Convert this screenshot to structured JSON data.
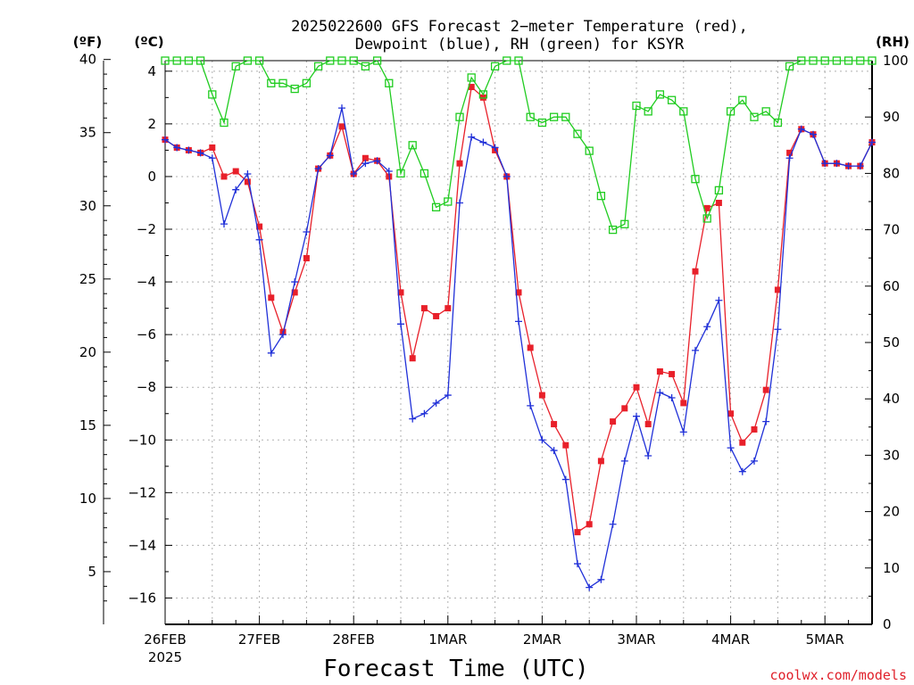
{
  "title_line1": "2025022600 GFS Forecast 2−meter Temperature (red),",
  "title_line2": "Dewpoint (blue), RH (green) for KSYR",
  "x_axis_title": "Forecast Time (UTC)",
  "credit": "coolwx.com/models",
  "unit_f": "(ºF)",
  "unit_c": "(ºC)",
  "unit_rh": "(RH)",
  "x_year": "2025",
  "chart_data": {
    "type": "line",
    "title": "2025022600 GFS Forecast 2-meter Temperature (red), Dewpoint (blue), RH (green) for KSYR",
    "xlabel": "Forecast Time (UTC)",
    "x_unit": "days since 2025-02-26 00 UTC",
    "x_range": [
      0,
      7.5
    ],
    "x_ticks": [
      0,
      1,
      2,
      3,
      4,
      5,
      6,
      7
    ],
    "x_tick_labels": [
      "26FEB",
      "27FEB",
      "28FEB",
      "1MAR",
      "2MAR",
      "3MAR",
      "4MAR",
      "5MAR"
    ],
    "y_celsius": {
      "range": [
        -17,
        4.4
      ],
      "ticks": [
        -16,
        -14,
        -12,
        -10,
        -8,
        -6,
        -4,
        -2,
        0,
        2,
        4
      ],
      "tick_labels": [
        "−16",
        "−14",
        "−12",
        "−10",
        "−8",
        "−6",
        "−4",
        "−2",
        "0",
        "2",
        "4"
      ]
    },
    "y_fahrenheit": {
      "ticks": [
        5,
        10,
        15,
        20,
        25,
        30,
        35,
        40
      ],
      "tick_labels": [
        "5",
        "10",
        "15",
        "20",
        "25",
        "30",
        "35",
        "40"
      ]
    },
    "y_rh": {
      "range": [
        0,
        100
      ],
      "ticks": [
        0,
        10,
        20,
        30,
        40,
        50,
        60,
        70,
        80,
        90,
        100
      ],
      "tick_labels": [
        "0",
        "10",
        "20",
        "30",
        "40",
        "50",
        "60",
        "70",
        "80",
        "90",
        "100"
      ]
    },
    "grid": true,
    "series": [
      {
        "name": "Temperature",
        "axis": "celsius",
        "color": "#e8202a",
        "marker": "filled-square",
        "points": [
          [
            0,
            1.4
          ],
          [
            0.125,
            1.1
          ],
          [
            0.25,
            1.0
          ],
          [
            0.375,
            0.9
          ],
          [
            0.5,
            1.1
          ],
          [
            0.625,
            0.0
          ],
          [
            0.75,
            0.2
          ],
          [
            0.875,
            -0.2
          ],
          [
            1.0,
            -1.9
          ],
          [
            1.125,
            -4.6
          ],
          [
            1.25,
            -5.9
          ],
          [
            1.375,
            -4.4
          ],
          [
            1.5,
            -3.1
          ],
          [
            1.625,
            0.3
          ],
          [
            1.75,
            0.8
          ],
          [
            1.875,
            1.9
          ],
          [
            2.0,
            0.1
          ],
          [
            2.125,
            0.7
          ],
          [
            2.25,
            0.6
          ],
          [
            2.375,
            0.0
          ],
          [
            2.5,
            -4.4
          ],
          [
            2.625,
            -6.9
          ],
          [
            2.75,
            -5.0
          ],
          [
            2.875,
            -5.3
          ],
          [
            3.0,
            -5.0
          ],
          [
            3.125,
            0.5
          ],
          [
            3.25,
            3.4
          ],
          [
            3.375,
            3.0
          ],
          [
            3.5,
            1.0
          ],
          [
            3.625,
            0.0
          ],
          [
            3.75,
            -4.4
          ],
          [
            3.875,
            -6.5
          ],
          [
            4.0,
            -8.3
          ],
          [
            4.125,
            -9.4
          ],
          [
            4.25,
            -10.2
          ],
          [
            4.375,
            -13.5
          ],
          [
            4.5,
            -13.2
          ],
          [
            4.625,
            -10.8
          ],
          [
            4.75,
            -9.3
          ],
          [
            4.875,
            -8.8
          ],
          [
            5.0,
            -8.0
          ],
          [
            5.125,
            -9.4
          ],
          [
            5.25,
            -7.4
          ],
          [
            5.375,
            -7.5
          ],
          [
            5.5,
            -8.6
          ],
          [
            5.625,
            -3.6
          ],
          [
            5.75,
            -1.2
          ],
          [
            5.875,
            -1.0
          ],
          [
            6.0,
            -9.0
          ],
          [
            6.125,
            -10.1
          ],
          [
            6.25,
            -9.6
          ],
          [
            6.375,
            -8.1
          ],
          [
            6.5,
            -4.3
          ],
          [
            6.625,
            0.9
          ],
          [
            6.75,
            1.8
          ],
          [
            6.875,
            1.6
          ],
          [
            7.0,
            0.5
          ],
          [
            7.125,
            0.5
          ],
          [
            7.25,
            0.4
          ],
          [
            7.375,
            0.4
          ],
          [
            7.5,
            1.3
          ]
        ]
      },
      {
        "name": "Dewpoint",
        "axis": "celsius",
        "color": "#2030d8",
        "marker": "plus",
        "points": [
          [
            0,
            1.4
          ],
          [
            0.125,
            1.1
          ],
          [
            0.25,
            1.0
          ],
          [
            0.375,
            0.9
          ],
          [
            0.5,
            0.7
          ],
          [
            0.625,
            -1.8
          ],
          [
            0.75,
            -0.5
          ],
          [
            0.875,
            0.1
          ],
          [
            1.0,
            -2.4
          ],
          [
            1.125,
            -6.7
          ],
          [
            1.25,
            -6.0
          ],
          [
            1.375,
            -4.0
          ],
          [
            1.5,
            -2.1
          ],
          [
            1.625,
            0.3
          ],
          [
            1.75,
            0.8
          ],
          [
            1.875,
            2.6
          ],
          [
            2.0,
            0.1
          ],
          [
            2.125,
            0.5
          ],
          [
            2.25,
            0.6
          ],
          [
            2.375,
            0.2
          ],
          [
            2.5,
            -5.6
          ],
          [
            2.625,
            -9.2
          ],
          [
            2.75,
            -9.0
          ],
          [
            2.875,
            -8.6
          ],
          [
            3.0,
            -8.3
          ],
          [
            3.125,
            -1.0
          ],
          [
            3.25,
            1.5
          ],
          [
            3.375,
            1.3
          ],
          [
            3.5,
            1.1
          ],
          [
            3.625,
            0.0
          ],
          [
            3.75,
            -5.5
          ],
          [
            3.875,
            -8.7
          ],
          [
            4.0,
            -10.0
          ],
          [
            4.125,
            -10.4
          ],
          [
            4.25,
            -11.5
          ],
          [
            4.375,
            -14.7
          ],
          [
            4.5,
            -15.6
          ],
          [
            4.625,
            -15.3
          ],
          [
            4.75,
            -13.2
          ],
          [
            4.875,
            -10.8
          ],
          [
            5.0,
            -9.1
          ],
          [
            5.125,
            -10.6
          ],
          [
            5.25,
            -8.2
          ],
          [
            5.375,
            -8.4
          ],
          [
            5.5,
            -9.7
          ],
          [
            5.625,
            -6.6
          ],
          [
            5.75,
            -5.7
          ],
          [
            5.875,
            -4.7
          ],
          [
            6.0,
            -10.3
          ],
          [
            6.125,
            -11.2
          ],
          [
            6.25,
            -10.8
          ],
          [
            6.375,
            -9.3
          ],
          [
            6.5,
            -5.8
          ],
          [
            6.625,
            0.7
          ],
          [
            6.75,
            1.8
          ],
          [
            6.875,
            1.6
          ],
          [
            7.0,
            0.5
          ],
          [
            7.125,
            0.5
          ],
          [
            7.25,
            0.4
          ],
          [
            7.375,
            0.4
          ],
          [
            7.5,
            1.3
          ]
        ]
      },
      {
        "name": "RH",
        "axis": "rh",
        "color": "#20cc20",
        "marker": "open-square",
        "points": [
          [
            0,
            100
          ],
          [
            0.125,
            100
          ],
          [
            0.25,
            100
          ],
          [
            0.375,
            100
          ],
          [
            0.5,
            94
          ],
          [
            0.625,
            89
          ],
          [
            0.75,
            99
          ],
          [
            0.875,
            100
          ],
          [
            1.0,
            100
          ],
          [
            1.125,
            96
          ],
          [
            1.25,
            96
          ],
          [
            1.375,
            95
          ],
          [
            1.5,
            96
          ],
          [
            1.625,
            99
          ],
          [
            1.75,
            100
          ],
          [
            1.875,
            100
          ],
          [
            2.0,
            100
          ],
          [
            2.125,
            99
          ],
          [
            2.25,
            100
          ],
          [
            2.375,
            96
          ],
          [
            2.5,
            80
          ],
          [
            2.625,
            85
          ],
          [
            2.75,
            80
          ],
          [
            2.875,
            74
          ],
          [
            3.0,
            75
          ],
          [
            3.125,
            90
          ],
          [
            3.25,
            97
          ],
          [
            3.375,
            94
          ],
          [
            3.5,
            99
          ],
          [
            3.625,
            100
          ],
          [
            3.75,
            100
          ],
          [
            3.875,
            90
          ],
          [
            4.0,
            89
          ],
          [
            4.125,
            90
          ],
          [
            4.25,
            90
          ],
          [
            4.375,
            87
          ],
          [
            4.5,
            84
          ],
          [
            4.625,
            76
          ],
          [
            4.75,
            70
          ],
          [
            4.875,
            71
          ],
          [
            5.0,
            92
          ],
          [
            5.125,
            91
          ],
          [
            5.25,
            94
          ],
          [
            5.375,
            93
          ],
          [
            5.5,
            91
          ],
          [
            5.625,
            79
          ],
          [
            5.75,
            72
          ],
          [
            5.875,
            77
          ],
          [
            6.0,
            91
          ],
          [
            6.125,
            93
          ],
          [
            6.25,
            90
          ],
          [
            6.375,
            91
          ],
          [
            6.5,
            89
          ],
          [
            6.625,
            99
          ],
          [
            6.75,
            100
          ],
          [
            6.875,
            100
          ],
          [
            7.0,
            100
          ],
          [
            7.125,
            100
          ],
          [
            7.25,
            100
          ],
          [
            7.375,
            100
          ],
          [
            7.5,
            100
          ]
        ]
      }
    ]
  }
}
